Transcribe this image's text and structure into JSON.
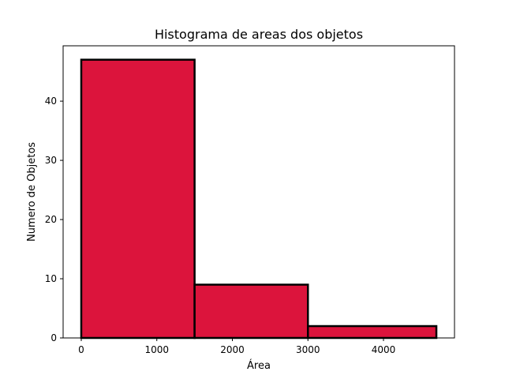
{
  "chart_data": {
    "type": "bar",
    "title": "Histograma de areas dos objetos",
    "xlabel": "Área",
    "ylabel": "Numero de Objetos",
    "bins": [
      {
        "x0": 0,
        "x1": 1500,
        "count": 47
      },
      {
        "x0": 1500,
        "x1": 3000,
        "count": 9
      },
      {
        "x0": 3000,
        "x1": 4700,
        "count": 2
      }
    ],
    "xlim": [
      -240,
      4940
    ],
    "ylim": [
      0,
      49.35
    ],
    "xticks": [
      {
        "value": 0,
        "label": "0"
      },
      {
        "value": 1000,
        "label": "1000"
      },
      {
        "value": 2000,
        "label": "2000"
      },
      {
        "value": 3000,
        "label": "3000"
      },
      {
        "value": 4000,
        "label": "4000"
      }
    ],
    "yticks": [
      {
        "value": 0,
        "label": "0"
      },
      {
        "value": 10,
        "label": "10"
      },
      {
        "value": 20,
        "label": "20"
      },
      {
        "value": 30,
        "label": "30"
      },
      {
        "value": 40,
        "label": "40"
      }
    ],
    "bar_color": "#DC143C",
    "edge_color": "#000000",
    "grid": false,
    "legend": null
  }
}
